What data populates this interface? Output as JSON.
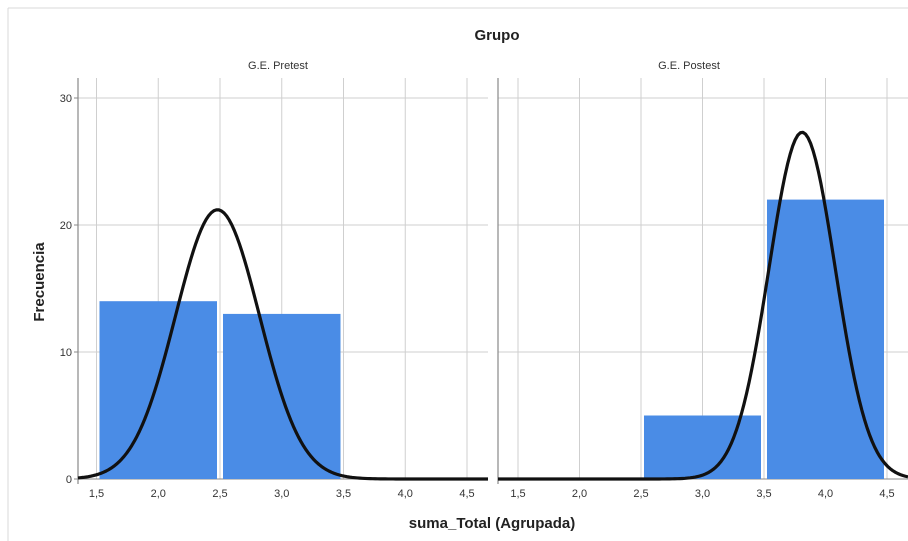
{
  "chart_data": {
    "type": "bar",
    "title": "Grupo",
    "xlabel": "suma_Total (Agrupada)",
    "ylabel": "Frecuencia",
    "ylim": [
      0,
      31
    ],
    "yticks": [
      0,
      10,
      20,
      30
    ],
    "xticks": [
      "1,5",
      "2,0",
      "2,5",
      "3,0",
      "3,5",
      "4,0",
      "4,5"
    ],
    "grid": true,
    "colors": {
      "bar": "#4A8CE6",
      "curve": "#111111",
      "grid": "#cfcfcf"
    },
    "panels": [
      {
        "name": "G.E. Pretest",
        "bins": [
          {
            "from": 1.5,
            "to": 2.5,
            "value": 14
          },
          {
            "from": 2.5,
            "to": 3.5,
            "value": 13
          }
        ],
        "normal_curve": {
          "mean": 2.48,
          "sd": 0.34,
          "peak": 21.2
        }
      },
      {
        "name": "G.E. Postest",
        "bins": [
          {
            "from": 2.5,
            "to": 3.5,
            "value": 5
          },
          {
            "from": 3.5,
            "to": 4.5,
            "value": 22
          }
        ],
        "normal_curve": {
          "mean": 3.81,
          "sd": 0.27,
          "peak": 27.3
        }
      }
    ]
  }
}
